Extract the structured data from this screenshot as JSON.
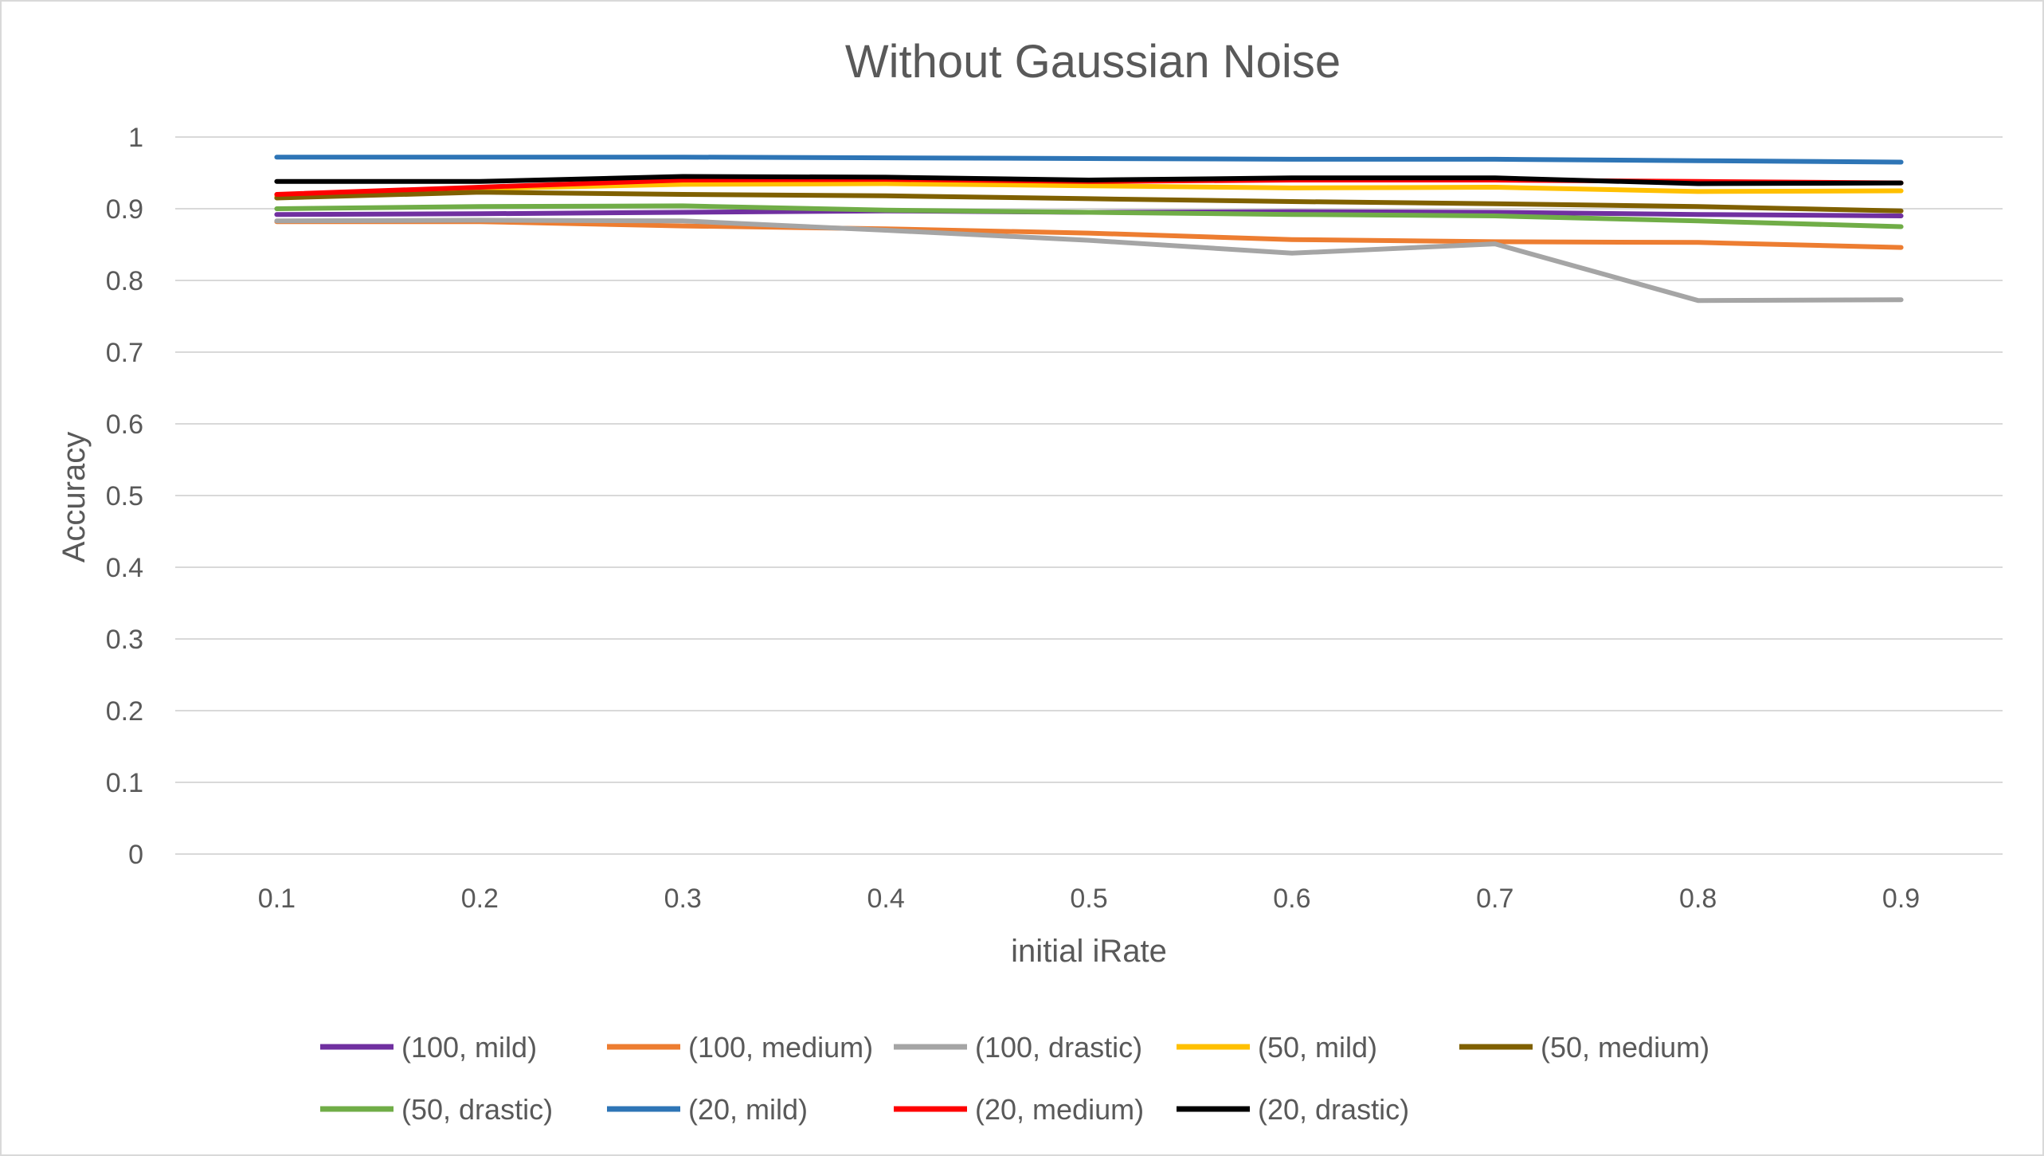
{
  "chart_data": {
    "type": "line",
    "title": "Without Gaussian Noise",
    "xlabel": "initial iRate",
    "ylabel": "Accuracy",
    "categories": [
      "0.1",
      "0.2",
      "0.3",
      "0.4",
      "0.5",
      "0.6",
      "0.7",
      "0.8",
      "0.9"
    ],
    "yticks": [
      "0",
      "0.1",
      "0.2",
      "0.3",
      "0.4",
      "0.5",
      "0.6",
      "0.7",
      "0.8",
      "0.9",
      "1"
    ],
    "ylim": [
      0,
      1
    ],
    "grid": true,
    "legend_position": "bottom",
    "series": [
      {
        "name": "(100, mild)",
        "color": "#7030a0",
        "values": [
          0.892,
          0.893,
          0.895,
          0.897,
          0.895,
          0.896,
          0.895,
          0.892,
          0.89
        ]
      },
      {
        "name": "(100, medium)",
        "color": "#ed7d31",
        "values": [
          0.882,
          0.882,
          0.876,
          0.872,
          0.866,
          0.857,
          0.854,
          0.853,
          0.846
        ]
      },
      {
        "name": "(100, drastic)",
        "color": "#a5a5a5",
        "values": [
          0.883,
          0.884,
          0.883,
          0.87,
          0.856,
          0.838,
          0.851,
          0.772,
          0.773
        ]
      },
      {
        "name": "(50, mild)",
        "color": "#ffc000",
        "values": [
          0.917,
          0.928,
          0.934,
          0.935,
          0.932,
          0.929,
          0.93,
          0.924,
          0.925
        ]
      },
      {
        "name": "(50, medium)",
        "color": "#7f6000",
        "values": [
          0.915,
          0.923,
          0.92,
          0.918,
          0.914,
          0.91,
          0.907,
          0.903,
          0.897
        ]
      },
      {
        "name": "(50, drastic)",
        "color": "#70ad47",
        "values": [
          0.9,
          0.903,
          0.904,
          0.898,
          0.895,
          0.892,
          0.89,
          0.883,
          0.875
        ]
      },
      {
        "name": "(20, mild)",
        "color": "#2e75b6",
        "values": [
          0.972,
          0.972,
          0.972,
          0.971,
          0.97,
          0.969,
          0.969,
          0.967,
          0.965
        ]
      },
      {
        "name": "(20, medium)",
        "color": "#ff0000",
        "values": [
          0.92,
          0.93,
          0.94,
          0.941,
          0.938,
          0.94,
          0.94,
          0.938,
          0.936
        ]
      },
      {
        "name": "(20, drastic)",
        "color": "#000000",
        "values": [
          0.938,
          0.938,
          0.945,
          0.944,
          0.94,
          0.943,
          0.943,
          0.935,
          0.936
        ]
      }
    ]
  }
}
